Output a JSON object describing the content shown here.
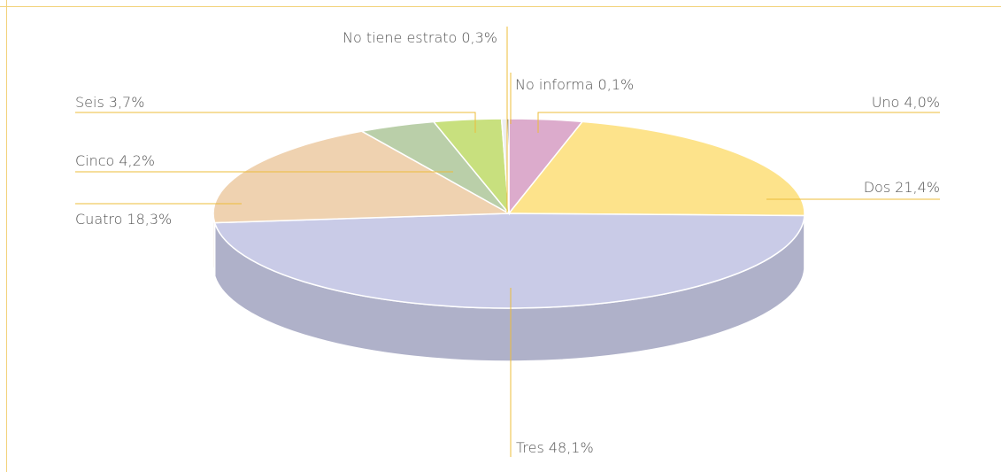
{
  "chart_data": {
    "type": "pie3d",
    "categories": [
      "Uno",
      "Dos",
      "Tres",
      "Cuatro",
      "Cinco",
      "Seis",
      "No tiene estrato",
      "No informa"
    ],
    "values": [
      4.0,
      21.4,
      48.1,
      18.3,
      4.2,
      3.7,
      0.3,
      0.1
    ],
    "value_labels": [
      "4,0%",
      "21,4%",
      "48,1%",
      "18,3%",
      "4,2%",
      "3,7%",
      "0,3%",
      "0,1%"
    ],
    "colors": [
      "#dcabcc",
      "#fde38b",
      "#c9cbe7",
      "#efd2b0",
      "#bacfa9",
      "#c8e07e",
      "#eeeeee",
      "#3b3b3b"
    ]
  }
}
